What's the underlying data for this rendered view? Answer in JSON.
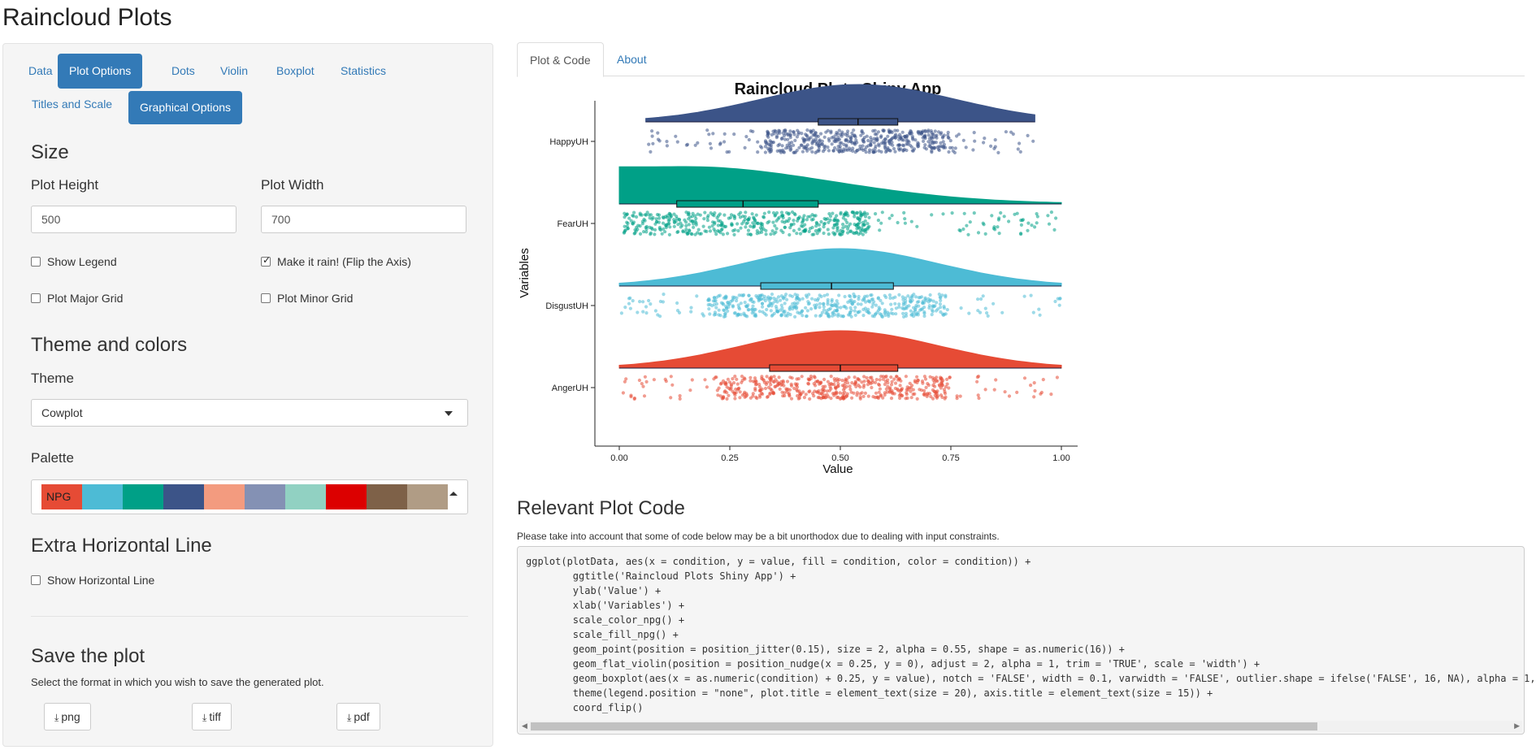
{
  "app_title": "Raincloud Plots",
  "sidebar": {
    "tabs": [
      {
        "label": "Data",
        "active": false
      },
      {
        "label": "Plot Options",
        "active": true
      },
      {
        "label": "Dots",
        "active": false
      },
      {
        "label": "Violin",
        "active": false
      },
      {
        "label": "Boxplot",
        "active": false
      },
      {
        "label": "Statistics",
        "active": false
      },
      {
        "label": "Titles and Scale",
        "active": false
      },
      {
        "label": "Graphical Options",
        "active": true
      }
    ],
    "size": {
      "heading": "Size",
      "plot_height_label": "Plot Height",
      "plot_height_value": "500",
      "plot_width_label": "Plot Width",
      "plot_width_value": "700",
      "show_legend": {
        "label": "Show Legend",
        "checked": false
      },
      "make_it_rain": {
        "label": "Make it rain! (Flip the Axis)",
        "checked": true
      },
      "major_grid": {
        "label": "Plot Major Grid",
        "checked": false
      },
      "minor_grid": {
        "label": "Plot Minor Grid",
        "checked": false
      }
    },
    "theme": {
      "heading": "Theme and colors",
      "theme_label": "Theme",
      "theme_value": "Cowplot",
      "palette_label": "Palette",
      "palette_name": "NPG",
      "palette_colors": [
        "#E64B35",
        "#4DBBD5",
        "#00A087",
        "#3C5488",
        "#F39B7F",
        "#8491B4",
        "#91D1C2",
        "#DC0000",
        "#7E6148",
        "#B09C85"
      ]
    },
    "extra_line": {
      "heading": "Extra Horizontal Line",
      "show_line": {
        "label": "Show Horizontal Line",
        "checked": false
      }
    },
    "save": {
      "heading": "Save the plot",
      "help": "Select the format in which you wish to save the generated plot.",
      "buttons": [
        "png",
        "tiff",
        "pdf"
      ]
    }
  },
  "main": {
    "tabs": [
      {
        "label": "Plot & Code",
        "active": true
      },
      {
        "label": "About",
        "active": false
      }
    ],
    "code_title": "Relevant Plot Code",
    "code_note": "Please take into account that some of code below may be a bit unorthodox due to dealing with input constraints.",
    "code_lines": [
      "ggplot(plotData, aes(x = condition, y = value, fill = condition, color = condition)) +",
      "        ggtitle('Raincloud Plots Shiny App') +",
      "        ylab('Value') +",
      "        xlab('Variables') +",
      "        scale_color_npg() +",
      "        scale_fill_npg() +",
      "        geom_point(position = position_jitter(0.15), size = 2, alpha = 0.55, shape = as.numeric(16)) +",
      "        geom_flat_violin(position = position_nudge(x = 0.25, y = 0), adjust = 2, alpha = 1, trim = 'TRUE', scale = 'width') +",
      "        geom_boxplot(aes(x = as.numeric(condition) + 0.25, y = value), notch = 'FALSE', width = 0.1, varwidth = 'FALSE', outlier.shape = ifelse('FALSE', 16, NA), alpha = 1,",
      "        theme(legend.position = \"none\", plot.title = element_text(size = 20), axis.title = element_text(size = 15)) +",
      "        coord_flip()"
    ]
  },
  "chart_data": {
    "type": "raincloud",
    "title": "Raincloud Plots Shiny App",
    "xlabel": "Value",
    "ylabel": "Variables",
    "xlim": [
      0,
      1
    ],
    "xticks": [
      "0.00",
      "0.25",
      "0.50",
      "0.75",
      "1.00"
    ],
    "grid": false,
    "legend": "none",
    "series": [
      {
        "name": "HappyUH",
        "color": "#3C5488",
        "min": 0.06,
        "max": 0.94,
        "mode": 0.54,
        "q1": 0.45,
        "median": 0.54,
        "q3": 0.63
      },
      {
        "name": "FearUH",
        "color": "#00A087",
        "min": 0.0,
        "max": 1.0,
        "mode": 0.15,
        "q1": 0.13,
        "median": 0.28,
        "q3": 0.45
      },
      {
        "name": "DisgustUH",
        "color": "#4DBBD5",
        "min": 0.0,
        "max": 1.0,
        "mode": 0.5,
        "q1": 0.32,
        "median": 0.48,
        "q3": 0.62
      },
      {
        "name": "AngerUH",
        "color": "#E64B35",
        "min": 0.0,
        "max": 1.0,
        "mode": 0.5,
        "q1": 0.34,
        "median": 0.5,
        "q3": 0.63
      }
    ]
  }
}
